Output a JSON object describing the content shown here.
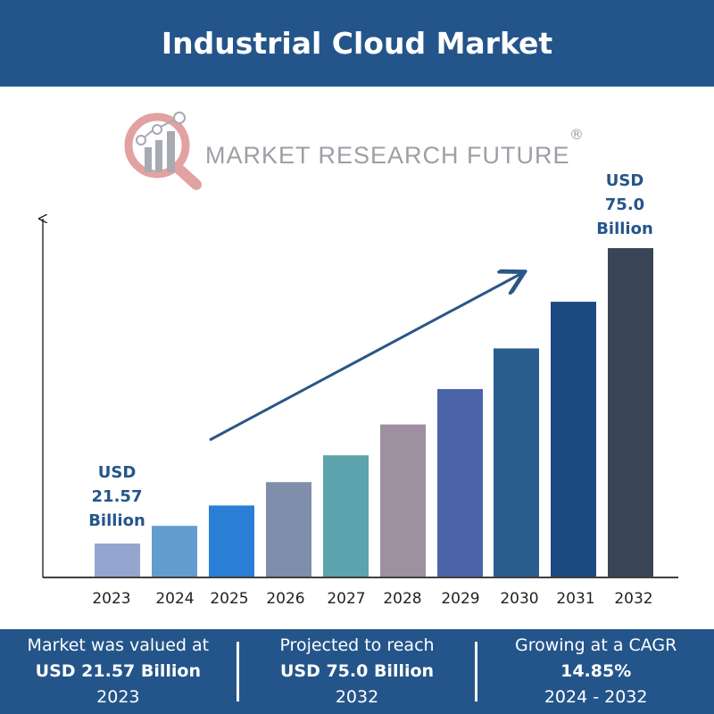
{
  "header": {
    "title": "Industrial Cloud Market"
  },
  "logo": {
    "text": "MARKET RESEARCH FUTURE",
    "registered": "®"
  },
  "colors": {
    "brand": "#24558a",
    "label": "#24558a"
  },
  "chart_data": {
    "type": "bar",
    "title": "",
    "xlabel": "",
    "ylabel": "",
    "categories": [
      "2023",
      "2024",
      "2025",
      "2026",
      "2027",
      "2028",
      "2029",
      "2030",
      "2031",
      "2032"
    ],
    "values": [
      21.57,
      24.77,
      28.45,
      32.68,
      37.53,
      43.11,
      49.51,
      56.86,
      65.3,
      75.0
    ],
    "bar_colors": [
      "#94a5d0",
      "#629dd0",
      "#2b7ed6",
      "#7f8fab",
      "#5ca3ae",
      "#9e8fa1",
      "#4a64a7",
      "#2a5d8e",
      "#1b4a80",
      "#3b4558"
    ],
    "grid": false,
    "axis_tick_labels_y": false,
    "trend_arrow": true,
    "annotations": [
      {
        "category": "2023",
        "lines": [
          "USD",
          "21.57",
          "Billion"
        ]
      },
      {
        "category": "2032",
        "lines": [
          "USD",
          "75.0",
          "Billion"
        ]
      }
    ]
  },
  "footer": [
    {
      "label": "Market was valued at",
      "value": "USD 21.57 Billion",
      "sub": "2023"
    },
    {
      "label": "Projected to reach",
      "value": "USD 75.0 Billion",
      "sub": "2032"
    },
    {
      "label": "Growing at a CAGR",
      "value": "14.85%",
      "sub": "2024 - 2032"
    }
  ]
}
